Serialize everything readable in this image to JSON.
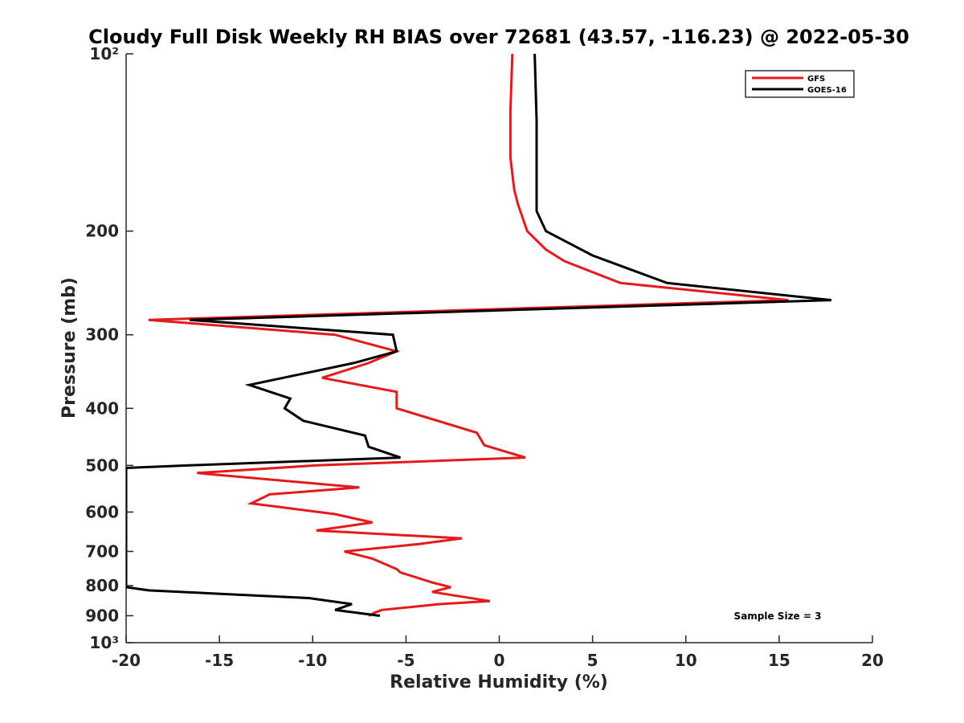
{
  "chart_data": {
    "type": "line",
    "title": "Cloudy Full Disk Weekly RH BIAS over 72681 (43.57, -116.23) @ 2022-05-30",
    "xlabel": "Relative Humidity (%)",
    "ylabel": "Pressure (mb)",
    "xlim": [
      -20,
      20
    ],
    "ylim": [
      100,
      1000
    ],
    "y_scale": "log",
    "y_reversed": true,
    "x_ticks": [
      -20,
      -15,
      -10,
      -5,
      0,
      5,
      10,
      15,
      20
    ],
    "x_tick_labels": [
      "-20",
      "-15",
      "-10",
      "-5",
      "0",
      "5",
      "10",
      "15",
      "20"
    ],
    "y_ticks": [
      100,
      200,
      300,
      400,
      500,
      600,
      700,
      800,
      900,
      1000
    ],
    "y_tick_labels": [
      "10²",
      "200",
      "300",
      "400",
      "500",
      "600",
      "700",
      "800",
      "900",
      "10³"
    ],
    "grid": false,
    "legend_position": "top-right",
    "annotation": "Sample Size = 3",
    "series": [
      {
        "name": "GFS",
        "color": "#e41a1c",
        "points": [
          [
            0.7,
            100
          ],
          [
            0.6,
            125
          ],
          [
            0.6,
            150
          ],
          [
            0.8,
            170
          ],
          [
            1.0,
            180
          ],
          [
            1.5,
            200
          ],
          [
            2.5,
            215
          ],
          [
            3.5,
            225
          ],
          [
            6.5,
            245
          ],
          [
            15.5,
            262
          ],
          [
            -18.8,
            283
          ],
          [
            -8.8,
            300
          ],
          [
            -5.5,
            320
          ],
          [
            -7.0,
            335
          ],
          [
            -9.5,
            355
          ],
          [
            -5.5,
            375
          ],
          [
            -5.5,
            400
          ],
          [
            -1.2,
            440
          ],
          [
            -0.8,
            462
          ],
          [
            1.4,
            485
          ],
          [
            -9.8,
            500
          ],
          [
            -16.2,
            515
          ],
          [
            -7.5,
            545
          ],
          [
            -12.3,
            560
          ],
          [
            -13.3,
            580
          ],
          [
            -8.8,
            605
          ],
          [
            -6.8,
            625
          ],
          [
            -9.8,
            645
          ],
          [
            -2.0,
            665
          ],
          [
            -4.3,
            680
          ],
          [
            -8.3,
            700
          ],
          [
            -6.8,
            720
          ],
          [
            -5.5,
            750
          ],
          [
            -5.3,
            760
          ],
          [
            -3.6,
            790
          ],
          [
            -2.6,
            805
          ],
          [
            -3.6,
            820
          ],
          [
            -0.5,
            850
          ],
          [
            -3.2,
            860
          ],
          [
            -6.3,
            880
          ],
          [
            -6.7,
            890
          ],
          [
            -7.0,
            900
          ]
        ]
      },
      {
        "name": "GOES-16",
        "color": "#000000",
        "points": [
          [
            1.9,
            100
          ],
          [
            2.0,
            130
          ],
          [
            2.0,
            160
          ],
          [
            2.0,
            185
          ],
          [
            2.5,
            200
          ],
          [
            5.0,
            220
          ],
          [
            9.0,
            245
          ],
          [
            17.8,
            262
          ],
          [
            -16.6,
            283
          ],
          [
            -5.7,
            300
          ],
          [
            -5.5,
            320
          ],
          [
            -7.8,
            335
          ],
          [
            -13.4,
            365
          ],
          [
            -11.2,
            385
          ],
          [
            -11.5,
            400
          ],
          [
            -10.5,
            420
          ],
          [
            -7.2,
            445
          ],
          [
            -7.0,
            465
          ],
          [
            -5.3,
            485
          ],
          [
            -16.6,
            500
          ],
          [
            -20.0,
            505
          ],
          [
            -20.0,
            805
          ],
          [
            -18.8,
            815
          ],
          [
            -10.2,
            840
          ],
          [
            -7.9,
            860
          ],
          [
            -8.8,
            880
          ],
          [
            -6.4,
            900
          ]
        ]
      }
    ]
  }
}
